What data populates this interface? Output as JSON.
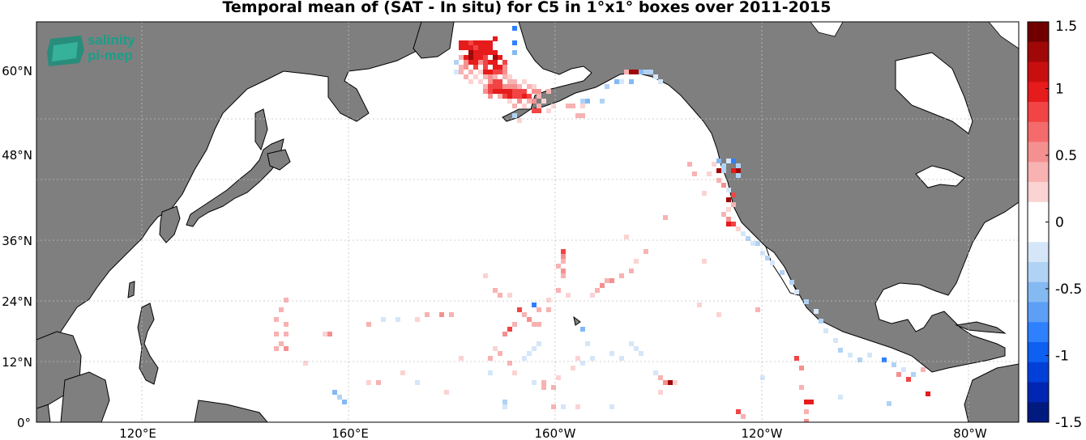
{
  "title": "Temporal mean of (SAT - In situ) for C5 in 1°x1° boxes over 2011-2015",
  "logo_text": [
    "salinity",
    "pi-mep"
  ],
  "map": {
    "lon_range": [
      100,
      -70
    ],
    "lat_range": [
      0,
      66
    ],
    "lat_ticks": [
      "0°",
      "12°N",
      "24°N",
      "36°N",
      "48°N",
      "60°N"
    ],
    "lon_ticks": [
      "120°E",
      "160°E",
      "160°W",
      "120°W",
      "80°W"
    ],
    "land_color": "#7f7f7f",
    "ocean_color": "#ffffff"
  },
  "colorbar": {
    "min": -1.5,
    "max": 1.5,
    "tick_labels": [
      "1.5",
      "1",
      "0.5",
      "0",
      "-0.5",
      "-1",
      "-1.5"
    ],
    "colors": [
      "#001a80",
      "#0026b3",
      "#0040d9",
      "#0d60f0",
      "#2e80ff",
      "#5c9ff5",
      "#85b9f2",
      "#b0d3f5",
      "#d5e6f8",
      "#ffffff",
      "#ffffff",
      "#fbd3d3",
      "#f8b2b2",
      "#f59090",
      "#f56b6b",
      "#f24444",
      "#e61b1b",
      "#c80f0f",
      "#a00808",
      "#700000"
    ]
  }
}
